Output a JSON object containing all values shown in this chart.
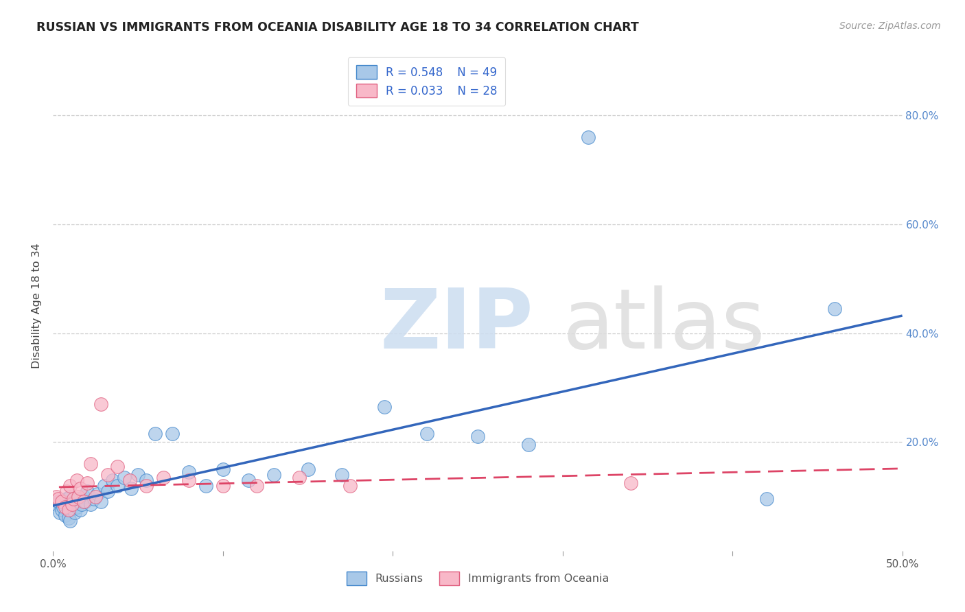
{
  "title": "RUSSIAN VS IMMIGRANTS FROM OCEANIA DISABILITY AGE 18 TO 34 CORRELATION CHART",
  "source": "Source: ZipAtlas.com",
  "ylabel": "Disability Age 18 to 34",
  "xlim": [
    0.0,
    0.5
  ],
  "ylim": [
    0.0,
    0.9
  ],
  "xticks": [
    0.0,
    0.1,
    0.2,
    0.3,
    0.4,
    0.5
  ],
  "xticklabels": [
    "0.0%",
    "",
    "",
    "",
    "",
    "50.0%"
  ],
  "right_yticks": [
    0.2,
    0.4,
    0.6,
    0.8
  ],
  "right_yticklabels": [
    "20.0%",
    "40.0%",
    "60.0%",
    "80.0%"
  ],
  "grid_yticks": [
    0.2,
    0.4,
    0.6,
    0.8
  ],
  "legend_R1": "0.548",
  "legend_N1": "49",
  "legend_R2": "0.033",
  "legend_N2": "28",
  "color_russian": "#a8c8e8",
  "color_oceania": "#f8b8c8",
  "edge_color_russian": "#4488cc",
  "edge_color_oceania": "#e06080",
  "line_color_russian": "#3366bb",
  "line_color_oceania": "#dd4466",
  "background_color": "#ffffff",
  "russians_x": [
    0.002,
    0.003,
    0.004,
    0.005,
    0.006,
    0.007,
    0.008,
    0.009,
    0.01,
    0.01,
    0.01,
    0.011,
    0.012,
    0.013,
    0.014,
    0.015,
    0.016,
    0.017,
    0.018,
    0.019,
    0.02,
    0.022,
    0.024,
    0.026,
    0.028,
    0.03,
    0.032,
    0.035,
    0.038,
    0.042,
    0.046,
    0.05,
    0.055,
    0.06,
    0.07,
    0.08,
    0.09,
    0.1,
    0.115,
    0.13,
    0.15,
    0.17,
    0.195,
    0.22,
    0.25,
    0.28,
    0.315,
    0.42,
    0.46
  ],
  "russians_y": [
    0.085,
    0.09,
    0.07,
    0.075,
    0.08,
    0.065,
    0.095,
    0.06,
    0.1,
    0.075,
    0.055,
    0.085,
    0.09,
    0.07,
    0.08,
    0.095,
    0.075,
    0.085,
    0.1,
    0.09,
    0.11,
    0.085,
    0.095,
    0.105,
    0.09,
    0.12,
    0.11,
    0.13,
    0.12,
    0.135,
    0.115,
    0.14,
    0.13,
    0.215,
    0.215,
    0.145,
    0.12,
    0.15,
    0.13,
    0.14,
    0.15,
    0.14,
    0.265,
    0.215,
    0.21,
    0.195,
    0.76,
    0.095,
    0.445
  ],
  "oceania_x": [
    0.002,
    0.003,
    0.005,
    0.007,
    0.008,
    0.009,
    0.01,
    0.011,
    0.012,
    0.014,
    0.015,
    0.016,
    0.018,
    0.02,
    0.022,
    0.025,
    0.028,
    0.032,
    0.038,
    0.045,
    0.055,
    0.065,
    0.08,
    0.1,
    0.12,
    0.145,
    0.175,
    0.34
  ],
  "oceania_y": [
    0.1,
    0.095,
    0.09,
    0.08,
    0.11,
    0.075,
    0.12,
    0.085,
    0.095,
    0.13,
    0.1,
    0.115,
    0.09,
    0.125,
    0.16,
    0.1,
    0.27,
    0.14,
    0.155,
    0.13,
    0.12,
    0.135,
    0.13,
    0.12,
    0.12,
    0.135,
    0.12,
    0.125
  ]
}
